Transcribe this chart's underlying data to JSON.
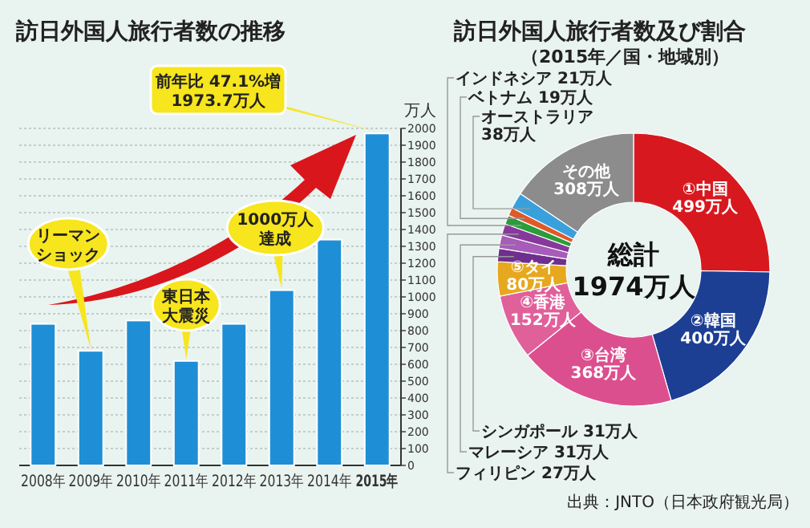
{
  "chart_data": [
    {
      "type": "bar",
      "title": "訪日外国人旅行者数の推移",
      "ylabel": "万人",
      "categories": [
        "2008年",
        "2009年",
        "2010年",
        "2011年",
        "2012年",
        "2013年",
        "2014年",
        "2015年"
      ],
      "values": [
        840,
        680,
        860,
        620,
        840,
        1040,
        1340,
        1970
      ],
      "color": "#1e8fd6",
      "ylim": [
        0,
        2000
      ],
      "yticks": [
        0,
        100,
        200,
        300,
        400,
        500,
        600,
        700,
        800,
        900,
        1000,
        1100,
        1200,
        1300,
        1400,
        1500,
        1600,
        1700,
        1800,
        1900,
        2000
      ],
      "grid": "y",
      "annotations": [
        {
          "text": "リーマンショック",
          "x": "2009年",
          "y": 680
        },
        {
          "text": "東日本大震災",
          "x": "2011年",
          "y": 620
        },
        {
          "text": "1000万人達成",
          "x": "2013年",
          "y": 1040
        },
        {
          "text": "前年比 47.1%増\n1973.7万人",
          "x": "2015年",
          "y": 1970
        }
      ]
    },
    {
      "type": "donut",
      "title": "訪日外国人旅行者数及び割合",
      "subtitle": "（2015年／国・地域別）",
      "categories": [
        "①中国",
        "②韓国",
        "③台湾",
        "④香港",
        "⑤タイ",
        "シンガポール",
        "マレーシア",
        "フィリピン",
        "インドネシア",
        "ベトナム",
        "オーストラリア",
        "その他"
      ],
      "values": [
        499,
        400,
        368,
        152,
        80,
        31,
        31,
        27,
        21,
        19,
        38,
        308
      ],
      "value_labels": [
        "499万人",
        "400万人",
        "368万人",
        "152万人",
        "80万人",
        "31万人",
        "31万人",
        "27万人",
        "21万人",
        "19万人",
        "38万人",
        "308万人"
      ],
      "colors": [
        "#d7191f",
        "#1c3f94",
        "#dc4f8f",
        "#e0609a",
        "#e6a81e",
        "#6f2f8e",
        "#a65cb8",
        "#86399b",
        "#2a9d3a",
        "#e0592a",
        "#3aa0dc",
        "#8c8c8c"
      ],
      "annotations": [
        "総計\n1974万人",
        "出典：JNTO（日本政府観光局）"
      ]
    }
  ]
}
